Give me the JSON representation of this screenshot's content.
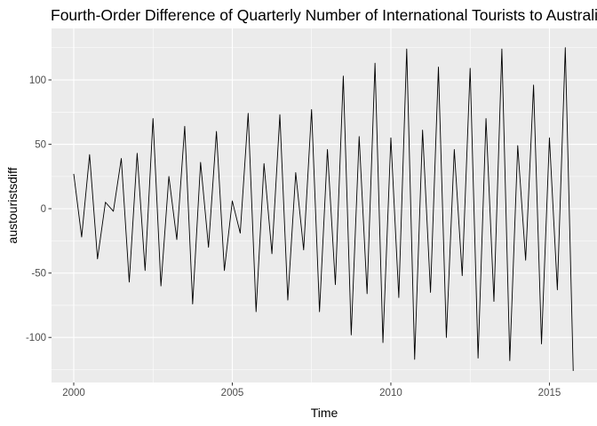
{
  "chart_data": {
    "type": "line",
    "title": "Fourth-Order Difference of Quarterly Number of International Tourists to Australia",
    "xlabel": "Time",
    "ylabel": "austouristsdiff",
    "xlim": [
      1999.3,
      2016.5
    ],
    "ylim": [
      -135,
      140
    ],
    "x_ticks": [
      2000,
      2005,
      2010,
      2015
    ],
    "x_tick_labels": [
      "2000",
      "2005",
      "2010",
      "2015"
    ],
    "y_ticks": [
      -100,
      -50,
      0,
      50,
      100
    ],
    "y_tick_labels": [
      "-100",
      "-50",
      "0",
      "50",
      "100"
    ],
    "grid": true,
    "legend": "none",
    "colors": {
      "panel_background": "#ebebeb",
      "grid_major": "#ffffff",
      "line": "#000000",
      "tick_text": "#4d4d4d"
    },
    "series": [
      {
        "x_start": 2000,
        "x_step": 0.25,
        "values": [
          27,
          -22,
          42,
          -39,
          5,
          -2,
          39,
          -57,
          43,
          -48,
          70,
          -60,
          25,
          -24,
          64,
          -74,
          36,
          -30,
          60,
          -48,
          6,
          -19,
          74,
          -80,
          35,
          -35,
          73,
          -71,
          28,
          -32,
          77,
          -80,
          46,
          -59,
          103,
          -98,
          56,
          -66,
          113,
          -104,
          55,
          -69,
          124,
          -117,
          61,
          -65,
          110,
          -100,
          46,
          -52,
          109,
          -116,
          70,
          -72,
          124,
          -118,
          49,
          -40,
          96,
          -105,
          55,
          -63,
          125,
          -126
        ]
      }
    ]
  }
}
